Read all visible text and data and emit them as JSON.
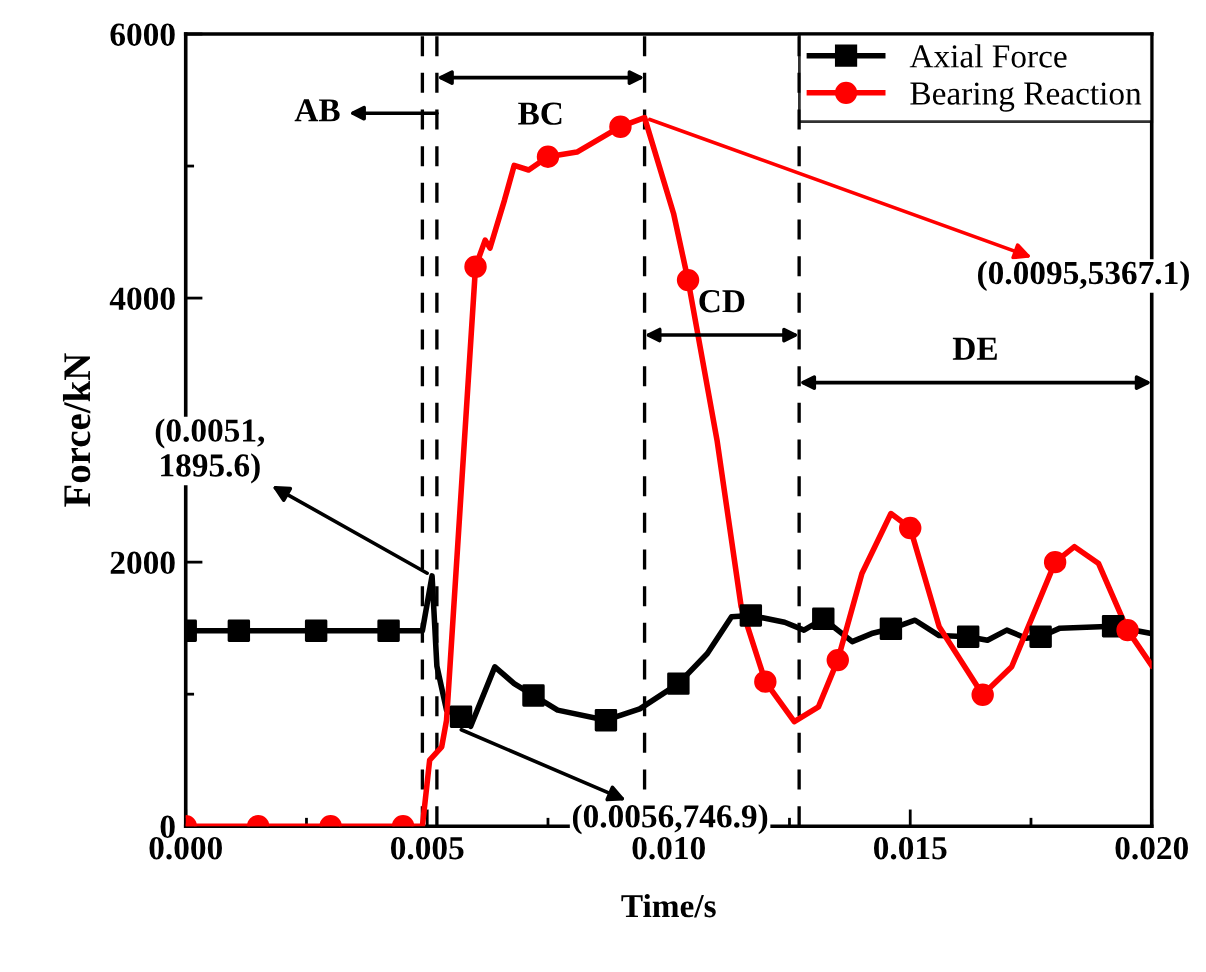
{
  "chart_data": {
    "type": "line",
    "xlabel": "Time/s",
    "ylabel": "Force/kN",
    "xlim": [
      0,
      0.02
    ],
    "xticks": [
      {
        "value": 0,
        "label": "0.000"
      },
      {
        "value": 0.005,
        "label": "0.005"
      },
      {
        "value": 0.01,
        "label": "0.010"
      },
      {
        "value": 0.015,
        "label": "0.015"
      },
      {
        "value": 0.02,
        "label": "0.020"
      }
    ],
    "ylim": [
      0,
      6000
    ],
    "yticks": [
      0,
      2000,
      4000,
      6000
    ],
    "grid": false,
    "legend": "top right",
    "line_style": "solid",
    "series": [
      {
        "marker": "none",
        "color": "#000000",
        "x": [
          0,
          0.0049,
          0.0051,
          0.0052,
          0.0054,
          0.0057,
          0.0059,
          0.0064,
          0.0068,
          0.0072,
          0.0077,
          0.0087,
          0.0094,
          0.0102,
          0.0108,
          0.0113,
          0.0117,
          0.0124,
          0.0128,
          0.0132,
          0.0138,
          0.0142,
          0.0146,
          0.0151,
          0.0156,
          0.0162,
          0.0166,
          0.017,
          0.0174,
          0.0177,
          0.0181,
          0.0192,
          0.02
        ],
        "values": [
          1480,
          1480,
          1895.6,
          1212,
          879,
          829,
          757,
          1207,
          1080,
          990,
          879,
          803,
          889,
          1080,
          1308,
          1586,
          1596,
          1545,
          1485,
          1571,
          1398,
          1459,
          1495,
          1560,
          1444,
          1435,
          1409,
          1485,
          1424,
          1435,
          1500,
          1515,
          1459
        ]
      },
      {
        "marker": "none",
        "color": "#ff0000",
        "x": [
          0,
          0.0049,
          0.00505,
          0.0053,
          0.0054,
          0.006,
          0.0062,
          0.0063,
          0.0066,
          0.0068,
          0.0071,
          0.0075,
          0.0081,
          0.009,
          0.0095,
          0.0101,
          0.0104,
          0.011,
          0.0115,
          0.012,
          0.0126,
          0.0131,
          0.0135,
          0.014,
          0.0146,
          0.015,
          0.0156,
          0.0165,
          0.0171,
          0.018,
          0.0184,
          0.0189,
          0.0195,
          0.02
        ],
        "values": [
          0,
          0,
          500,
          601,
          803,
          4237,
          4439,
          4379,
          4742,
          5005,
          4970,
          5071,
          5106,
          5298,
          5367.1,
          4641,
          4136,
          2924,
          1662,
          1095,
          792,
          904,
          1258,
          1914,
          2368,
          2258,
          1511,
          995,
          1208,
          2000,
          2117,
          1989,
          1485,
          1217
        ]
      },
      {
        "type": "scatter",
        "name": "Axial Force",
        "marker": "square",
        "color": "#000000",
        "x": [
          0,
          0.0011,
          0.0027,
          0.0042,
          0.0057,
          0.0072,
          0.0087,
          0.0102,
          0.0117,
          0.0132,
          0.0146,
          0.0162,
          0.0177,
          0.0192
        ],
        "values": [
          1480,
          1480,
          1480,
          1480,
          829,
          990,
          803,
          1080,
          1596,
          1571,
          1495,
          1435,
          1435,
          1515
        ]
      },
      {
        "type": "scatter",
        "name": "Bearing Reaction",
        "marker": "circle",
        "color": "#ff0000",
        "x": [
          0,
          0.0015,
          0.003,
          0.0045,
          0.006,
          0.0075,
          0.009,
          0.0104,
          0.012,
          0.0135,
          0.015,
          0.0165,
          0.018,
          0.0195
        ],
        "values": [
          0,
          0,
          0,
          0,
          4237,
          5071,
          5298,
          4136,
          1095,
          1258,
          2258,
          995,
          2000,
          1485
        ]
      }
    ],
    "ref_lines": [
      {
        "axis": "x",
        "value": 0.0049,
        "line_style": "dashed",
        "color": "#000000"
      },
      {
        "axis": "x",
        "value": 0.0052,
        "line_style": "dashed",
        "color": "#000000"
      },
      {
        "axis": "x",
        "value": 0.0095,
        "line_style": "dashed",
        "color": "#000000"
      },
      {
        "axis": "x",
        "value": 0.0127,
        "line_style": "dashed",
        "color": "#000000"
      }
    ],
    "annotations": [
      "AB",
      "BC",
      "CD",
      "DE",
      {
        "text": "(0.0051,\n1895.6)",
        "x": 0.0051,
        "y": 1895.6
      },
      {
        "text": "(0.0056,746.9)",
        "x": 0.0056,
        "y": 746.9
      },
      {
        "text": "(0.0095,5367.1)",
        "x": 0.0095,
        "y": 5367.1
      }
    ]
  }
}
